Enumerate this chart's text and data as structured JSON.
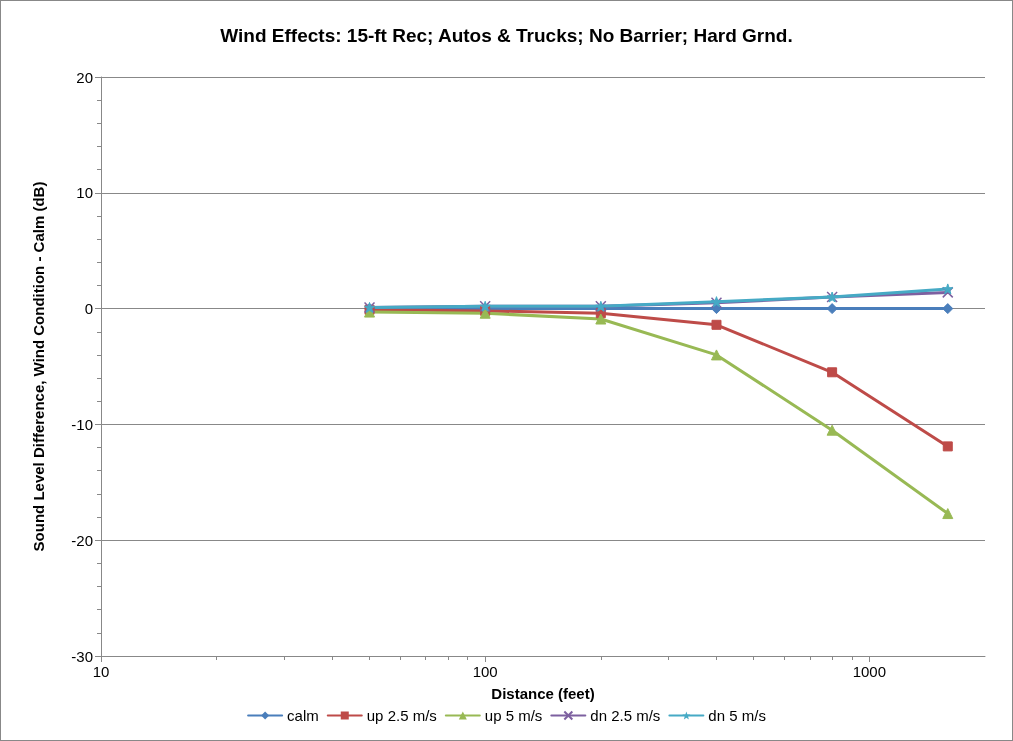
{
  "chart_data": {
    "type": "line",
    "title": "Wind Effects: 15-ft Rec; Autos & Trucks; No Barrier; Hard Grnd.",
    "xlabel": "Distance (feet)",
    "ylabel": "Sound Level Difference, Wind Condition - Calm (dB)",
    "x": [
      50,
      100,
      200,
      400,
      800,
      1600
    ],
    "log": "x",
    "xlim": [
      10,
      2000
    ],
    "xticks": [
      10,
      100,
      1000
    ],
    "ylim": [
      -30,
      20
    ],
    "yticks": [
      -30,
      -20,
      -10,
      0,
      10,
      20
    ],
    "grid": "y",
    "legend": "bottom",
    "line_style": "solid",
    "series": [
      {
        "name": "calm",
        "color": "#4a7ebb",
        "marker": "diamond",
        "values": [
          0,
          0,
          0,
          0,
          0,
          0
        ]
      },
      {
        "name": "up 2.5 m/s",
        "color": "#be4b48",
        "marker": "square",
        "values": [
          -0.1,
          -0.2,
          -0.4,
          -1.4,
          -5.5,
          -11.9
        ]
      },
      {
        "name": "up 5 m/s",
        "color": "#98b954",
        "marker": "triangle",
        "values": [
          -0.3,
          -0.4,
          -0.9,
          -4.0,
          -10.5,
          -17.7
        ]
      },
      {
        "name": "dn 2.5 m/s",
        "color": "#7d60a0",
        "marker": "cross",
        "values": [
          0.1,
          0.2,
          0.2,
          0.5,
          1.0,
          1.4
        ]
      },
      {
        "name": "dn 5 m/s",
        "color": "#46aac5",
        "marker": "star",
        "values": [
          0.1,
          0.2,
          0.2,
          0.6,
          1.0,
          1.7
        ]
      }
    ]
  }
}
